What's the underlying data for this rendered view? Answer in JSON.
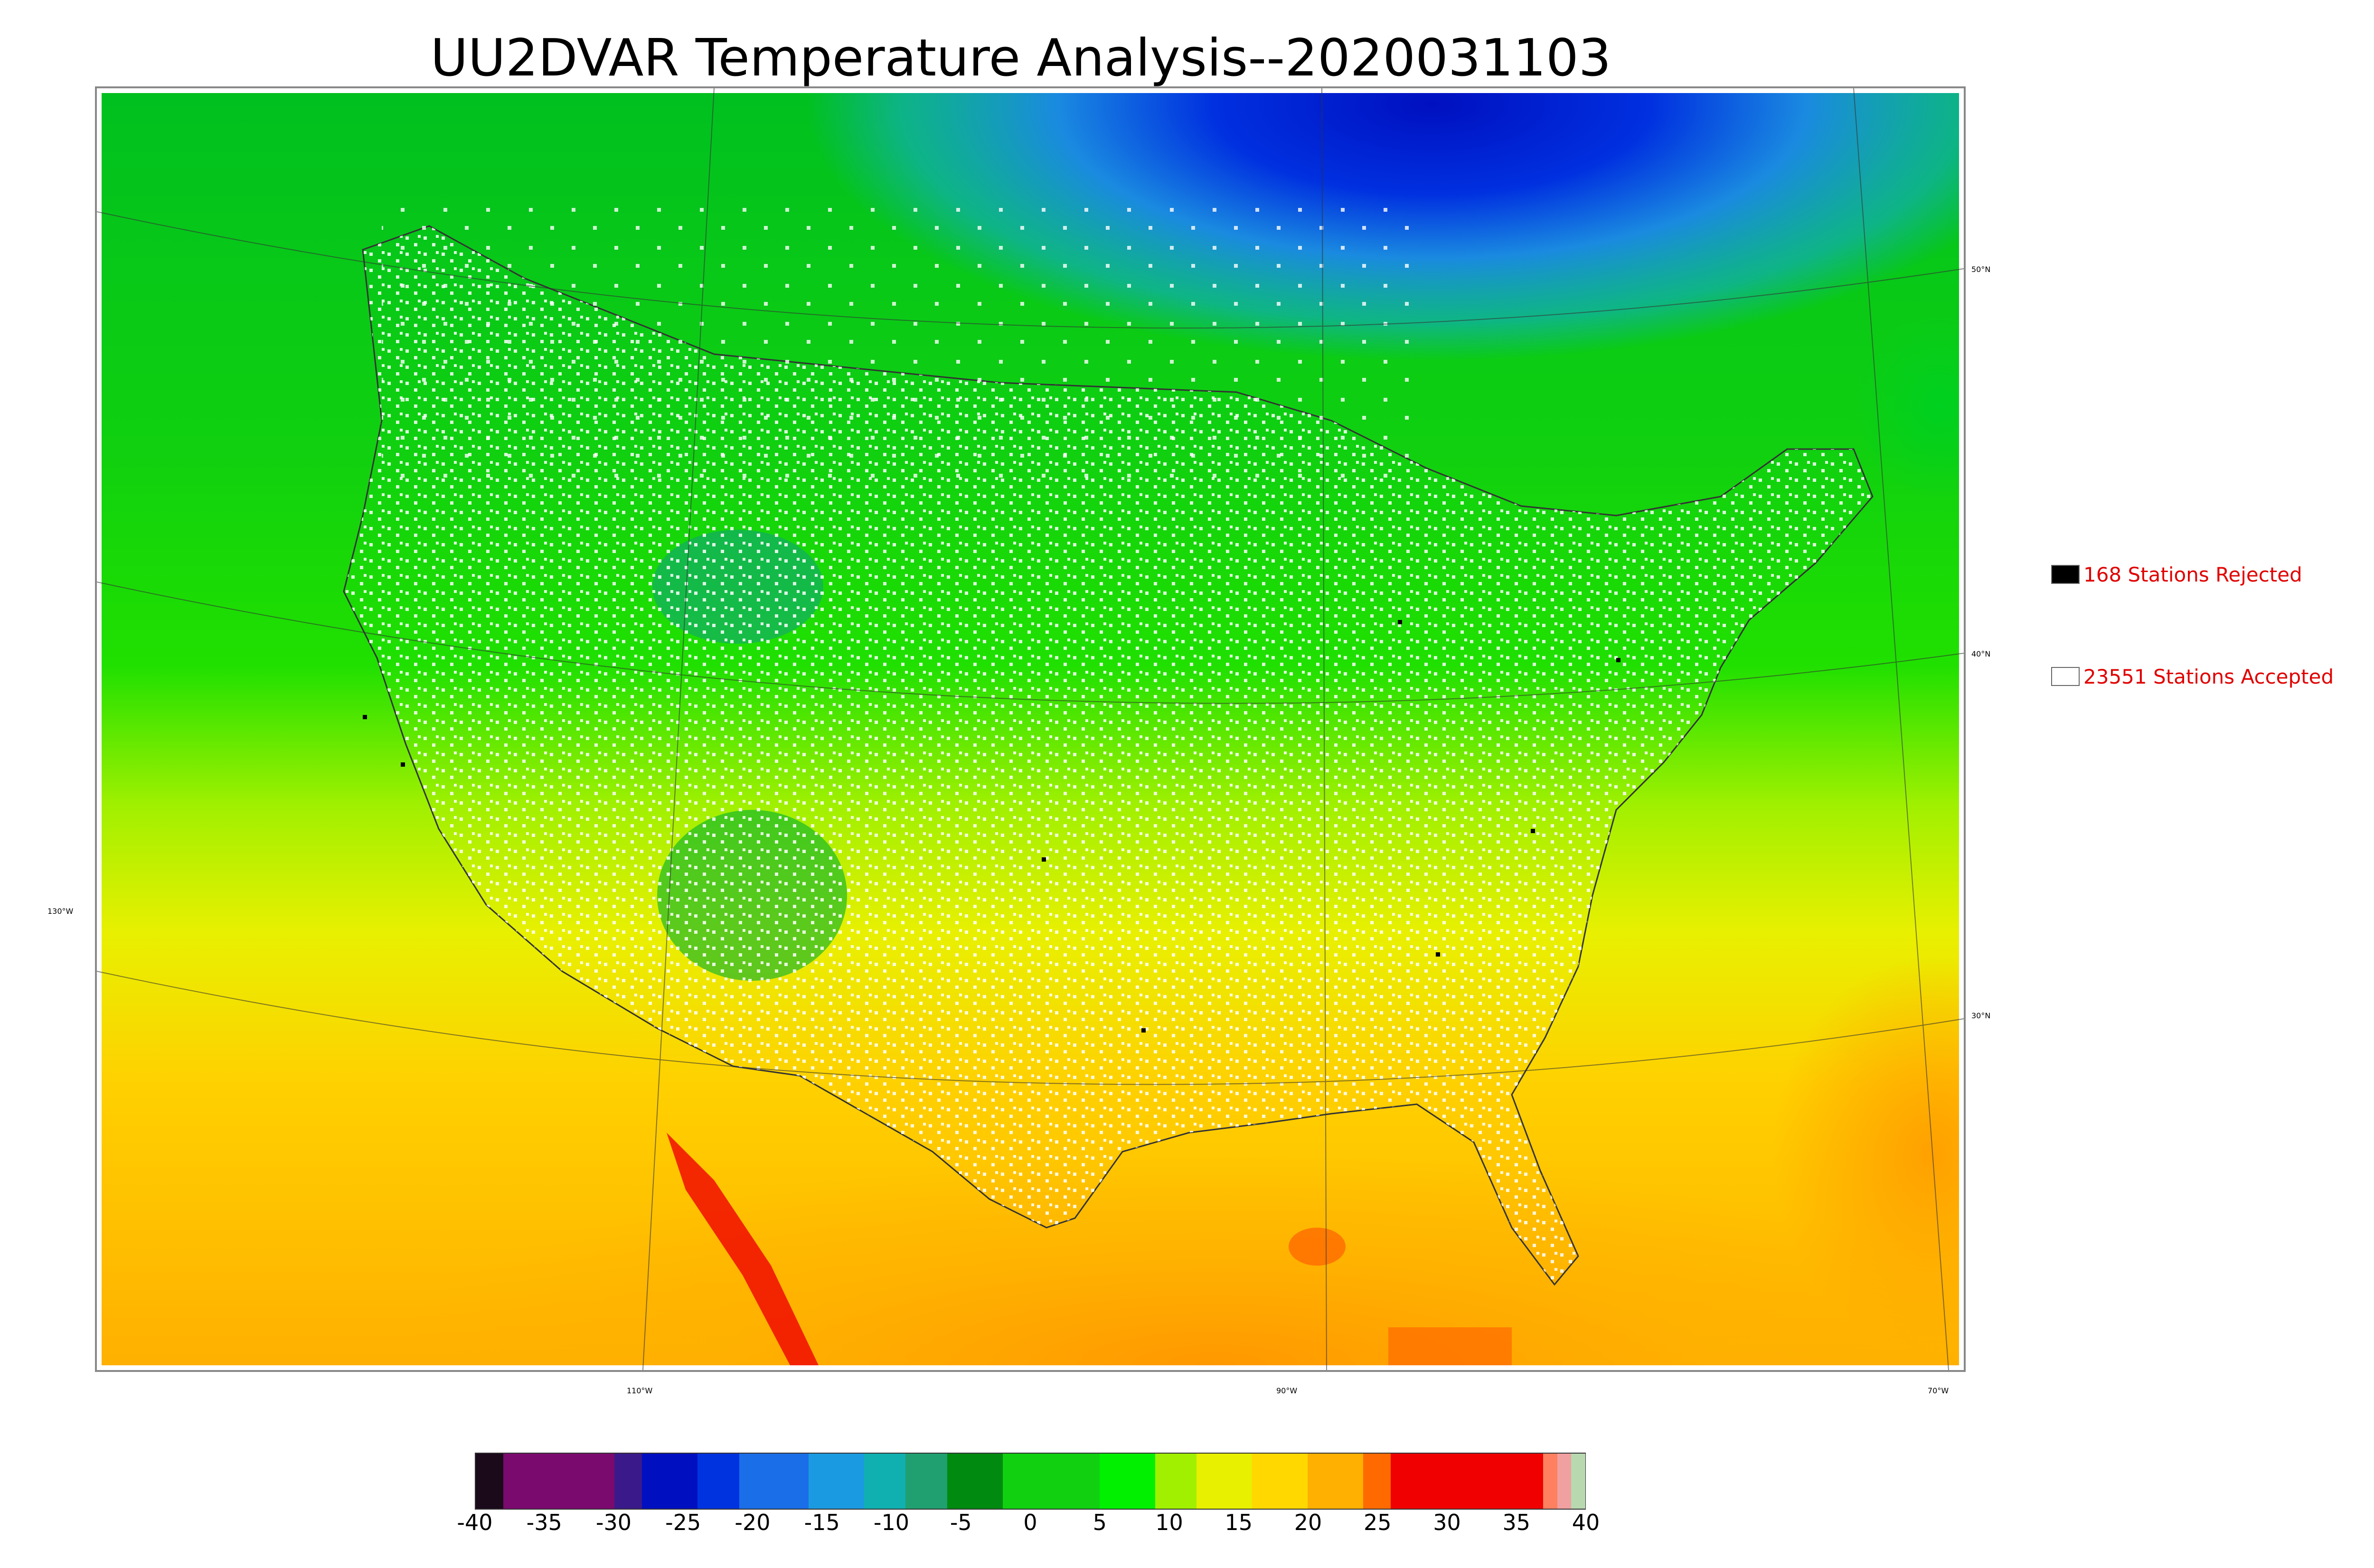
{
  "title": "UU2DVAR Temperature Analysis--2020031103",
  "legend": {
    "rejected": {
      "text": "168 Stations Rejected",
      "color": "#000000"
    },
    "accepted": {
      "text": "23551 Stations Accepted",
      "color": "#ffffff"
    }
  },
  "graticule_labels": {
    "lat_50": "50°N",
    "lat_40": "40°N",
    "lat_30": "30°N",
    "lon_130": "130°W",
    "lon_110": "110°W",
    "lon_90": "90°W",
    "lon_70": "70°W"
  },
  "colorbar": {
    "ticks": [
      "-40",
      "-35",
      "-30",
      "-25",
      "-20",
      "-15",
      "-10",
      "-5",
      "0",
      "5",
      "10",
      "15",
      "20",
      "25",
      "30",
      "35",
      "40"
    ],
    "min": -40,
    "max": 40,
    "colors": [
      {
        "from": -40,
        "to": -38,
        "color": "#1a0a1a"
      },
      {
        "from": -38,
        "to": -30,
        "color": "#7a0a6e"
      },
      {
        "from": -30,
        "to": -28,
        "color": "#3a1a8a"
      },
      {
        "from": -28,
        "to": -24,
        "color": "#0010c0"
      },
      {
        "from": -24,
        "to": -21,
        "color": "#0033e0"
      },
      {
        "from": -21,
        "to": -16,
        "color": "#1a6ee8"
      },
      {
        "from": -16,
        "to": -12,
        "color": "#1a9ae0"
      },
      {
        "from": -12,
        "to": -9,
        "color": "#10b0b0"
      },
      {
        "from": -9,
        "to": -6,
        "color": "#20a070"
      },
      {
        "from": -6,
        "to": -2,
        "color": "#008a10"
      },
      {
        "from": -2,
        "to": 5,
        "color": "#10d010"
      },
      {
        "from": 5,
        "to": 9,
        "color": "#00f000"
      },
      {
        "from": 9,
        "to": 12,
        "color": "#a0f000"
      },
      {
        "from": 12,
        "to": 16,
        "color": "#e8f000"
      },
      {
        "from": 16,
        "to": 20,
        "color": "#ffd800"
      },
      {
        "from": 20,
        "to": 24,
        "color": "#ffb000"
      },
      {
        "from": 24,
        "to": 26,
        "color": "#ff6a00"
      },
      {
        "from": 26,
        "to": 37,
        "color": "#f00000"
      },
      {
        "from": 37,
        "to": 38,
        "color": "#ff8060"
      },
      {
        "from": 38,
        "to": 39,
        "color": "#f0a0a0"
      },
      {
        "from": 39,
        "to": 40,
        "color": "#b8d8b0"
      }
    ]
  },
  "colors": {
    "ocean_south": "#ffc000",
    "ocean_north": "#00d000",
    "canada_cold": "#2080e0",
    "arctic": "#0010d0",
    "station_accepted": "#ffffff",
    "station_rejected": "#000000"
  }
}
